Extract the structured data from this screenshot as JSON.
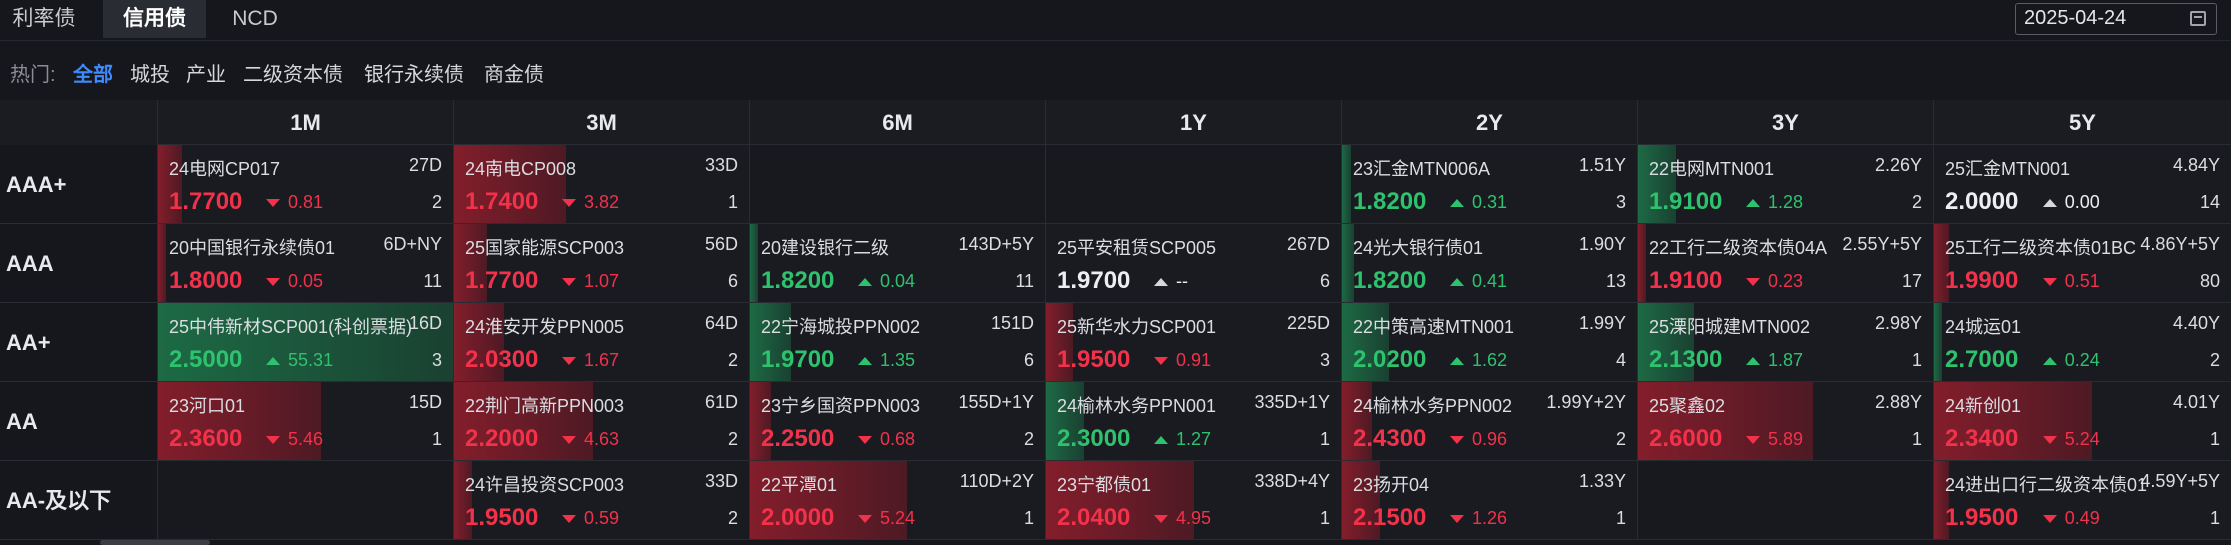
{
  "tabs": [
    "利率债",
    "信用债",
    "NCD"
  ],
  "active_tab": 1,
  "date": "2025-04-24",
  "hot": {
    "label": "热门:",
    "items": [
      "全部",
      "城投",
      "产业",
      "二级资本债",
      "银行永续债",
      "商金债"
    ],
    "active": 0
  },
  "columns": [
    "1M",
    "3M",
    "6M",
    "1Y",
    "2Y",
    "3Y",
    "5Y"
  ],
  "rows": [
    "AAA+",
    "AAA",
    "AA+",
    "AA",
    "AA-及以下"
  ],
  "colors": {
    "down": "#f2314a",
    "up": "#2fc26e",
    "accent": "#3d8bff",
    "background": "#16171c"
  },
  "cells": [
    [
      {
        "name": "24电网CP017",
        "tenor": "27D",
        "yield": "1.7700",
        "change": "0.81",
        "dir": "down",
        "count": "2",
        "level": 0.08
      },
      {
        "name": "24南电CP008",
        "tenor": "33D",
        "yield": "1.7400",
        "change": "3.82",
        "dir": "down",
        "count": "1",
        "level": 0.38
      },
      null,
      null,
      {
        "name": "23汇金MTN006A",
        "tenor": "1.51Y",
        "yield": "1.8200",
        "change": "0.31",
        "dir": "up",
        "count": "3",
        "level": 0.03
      },
      {
        "name": "22电网MTN001",
        "tenor": "2.26Y",
        "yield": "1.9100",
        "change": "1.28",
        "dir": "up",
        "count": "2",
        "level": 0.13
      },
      {
        "name": "25汇金MTN001",
        "tenor": "4.84Y",
        "yield": "2.0000",
        "change": "0.00",
        "dir": "flat",
        "count": "14",
        "level": 0
      }
    ],
    [
      {
        "name": "20中国银行永续债01",
        "tenor": "6D+NY",
        "yield": "1.8000",
        "change": "0.05",
        "dir": "down",
        "count": "11",
        "level": 0.01
      },
      {
        "name": "25国家能源SCP003",
        "tenor": "56D",
        "yield": "1.7700",
        "change": "1.07",
        "dir": "down",
        "count": "6",
        "level": 0.11
      },
      {
        "name": "20建设银行二级",
        "tenor": "143D+5Y",
        "yield": "1.8200",
        "change": "0.04",
        "dir": "up",
        "count": "11",
        "level": 0.01
      },
      {
        "name": "25平安租赁SCP005",
        "tenor": "267D",
        "yield": "1.9700",
        "change": "--",
        "dir": "flat",
        "count": "6",
        "level": 0
      },
      {
        "name": "24光大银行债01",
        "tenor": "1.90Y",
        "yield": "1.8200",
        "change": "0.41",
        "dir": "up",
        "count": "13",
        "level": 0.04
      },
      {
        "name": "22工行二级资本债04A",
        "tenor": "2.55Y+5Y",
        "yield": "1.9100",
        "change": "0.23",
        "dir": "down",
        "count": "17",
        "level": 0.02
      },
      {
        "name": "25工行二级资本债01BC",
        "tenor": "4.86Y+5Y",
        "yield": "1.9900",
        "change": "0.51",
        "dir": "down",
        "count": "80",
        "level": 0.05
      }
    ],
    [
      {
        "name": "25中伟新材SCP001(科创票据)",
        "tenor": "16D",
        "yield": "2.5000",
        "change": "55.31",
        "dir": "up",
        "count": "3",
        "level": 1.0
      },
      {
        "name": "24淮安开发PPN005",
        "tenor": "64D",
        "yield": "2.0300",
        "change": "1.67",
        "dir": "down",
        "count": "2",
        "level": 0.17
      },
      {
        "name": "22宁海城投PPN002",
        "tenor": "151D",
        "yield": "1.9700",
        "change": "1.35",
        "dir": "up",
        "count": "6",
        "level": 0.14
      },
      {
        "name": "25新华水力SCP001",
        "tenor": "225D",
        "yield": "1.9500",
        "change": "0.91",
        "dir": "down",
        "count": "3",
        "level": 0.09
      },
      {
        "name": "22中策高速MTN001",
        "tenor": "1.99Y",
        "yield": "2.0200",
        "change": "1.62",
        "dir": "up",
        "count": "4",
        "level": 0.16
      },
      {
        "name": "25溧阳城建MTN002",
        "tenor": "2.98Y",
        "yield": "2.1300",
        "change": "1.87",
        "dir": "up",
        "count": "1",
        "level": 0.19
      },
      {
        "name": "24城运01",
        "tenor": "4.40Y",
        "yield": "2.7000",
        "change": "0.24",
        "dir": "up",
        "count": "2",
        "level": 0.02
      }
    ],
    [
      {
        "name": "23河口01",
        "tenor": "15D",
        "yield": "2.3600",
        "change": "5.46",
        "dir": "down",
        "count": "1",
        "level": 0.55
      },
      {
        "name": "22荆门高新PPN003",
        "tenor": "61D",
        "yield": "2.2000",
        "change": "4.63",
        "dir": "down",
        "count": "2",
        "level": 0.47
      },
      {
        "name": "23宁乡国资PPN003",
        "tenor": "155D+1Y",
        "yield": "2.2500",
        "change": "0.68",
        "dir": "down",
        "count": "2",
        "level": 0.07
      },
      {
        "name": "24榆林水务PPN001",
        "tenor": "335D+1Y",
        "yield": "2.3000",
        "change": "1.27",
        "dir": "up",
        "count": "1",
        "level": 0.13
      },
      {
        "name": "24榆林水务PPN002",
        "tenor": "1.99Y+2Y",
        "yield": "2.4300",
        "change": "0.96",
        "dir": "down",
        "count": "2",
        "level": 0.1
      },
      {
        "name": "25聚鑫02",
        "tenor": "2.88Y",
        "yield": "2.6000",
        "change": "5.89",
        "dir": "down",
        "count": "1",
        "level": 0.59
      },
      {
        "name": "24新创01",
        "tenor": "4.01Y",
        "yield": "2.3400",
        "change": "5.24",
        "dir": "down",
        "count": "1",
        "level": 0.53
      }
    ],
    [
      null,
      {
        "name": "24许昌投资SCP003",
        "tenor": "33D",
        "yield": "1.9500",
        "change": "0.59",
        "dir": "down",
        "count": "2",
        "level": 0.06
      },
      {
        "name": "22平潭01",
        "tenor": "110D+2Y",
        "yield": "2.0000",
        "change": "5.24",
        "dir": "down",
        "count": "1",
        "level": 0.53
      },
      {
        "name": "23宁都债01",
        "tenor": "338D+4Y",
        "yield": "2.0400",
        "change": "4.95",
        "dir": "down",
        "count": "1",
        "level": 0.5
      },
      {
        "name": "23扬开04",
        "tenor": "1.33Y",
        "yield": "2.1500",
        "change": "1.26",
        "dir": "down",
        "count": "1",
        "level": 0.13
      },
      null,
      {
        "name": "24进出口行二级资本债01",
        "tenor": "4.59Y+5Y",
        "yield": "1.9500",
        "change": "0.49",
        "dir": "down",
        "count": "1",
        "level": 0.05
      }
    ]
  ]
}
